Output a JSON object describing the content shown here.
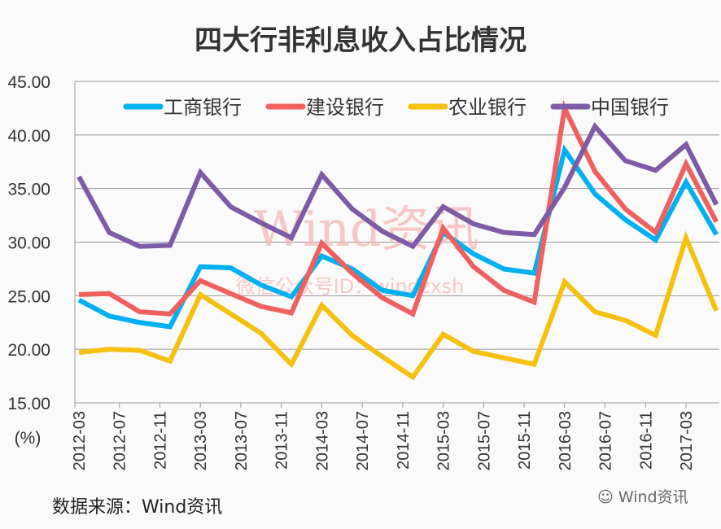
{
  "chart_data": {
    "type": "line",
    "title": "四大行非利息收入占比情况",
    "ylabel": "(%)",
    "ylim": [
      15,
      45
    ],
    "yticks": [
      "15.00",
      "20.00",
      "25.00",
      "30.00",
      "35.00",
      "40.00",
      "45.00"
    ],
    "grid": true,
    "legend_position": "top",
    "x": [
      "2012-03",
      "2012-06",
      "2012-09",
      "2012-12",
      "2013-03",
      "2013-06",
      "2013-09",
      "2013-12",
      "2014-03",
      "2014-06",
      "2014-09",
      "2014-12",
      "2015-03",
      "2015-06",
      "2015-09",
      "2015-12",
      "2016-03",
      "2016-06",
      "2016-09",
      "2016-12",
      "2017-03",
      "2017-06"
    ],
    "xtick_labels": [
      "2012-03",
      "2012-07",
      "2012-11",
      "2013-03",
      "2013-07",
      "2013-11",
      "2014-03",
      "2014-07",
      "2014-11",
      "2015-03",
      "2015-07",
      "2015-11",
      "2016-03",
      "2016-07",
      "2016-11",
      "2017-03"
    ],
    "series": [
      {
        "name": "工商银行",
        "color": "#00b0f0",
        "values": [
          24.6,
          23.1,
          22.5,
          22.1,
          27.7,
          27.6,
          26.0,
          24.9,
          28.7,
          27.5,
          25.5,
          25.0,
          30.9,
          28.9,
          27.5,
          27.1,
          38.6,
          34.5,
          32.1,
          30.2,
          35.6,
          30.7
        ]
      },
      {
        "name": "建设银行",
        "color": "#f0605e",
        "values": [
          25.1,
          25.2,
          23.5,
          23.3,
          26.4,
          25.2,
          24.0,
          23.4,
          29.9,
          27.1,
          24.8,
          23.3,
          31.3,
          27.7,
          25.5,
          24.4,
          42.5,
          36.6,
          33.1,
          30.9,
          37.3,
          31.9
        ]
      },
      {
        "name": "农业银行",
        "color": "#f6c00e",
        "values": [
          19.7,
          20.0,
          19.9,
          18.9,
          25.1,
          23.3,
          21.5,
          18.6,
          24.1,
          21.3,
          19.3,
          17.4,
          21.4,
          19.8,
          19.2,
          18.6,
          26.3,
          23.5,
          22.7,
          21.3,
          30.4,
          23.6
        ]
      },
      {
        "name": "中国银行",
        "color": "#7d5ba6",
        "values": [
          36.1,
          30.9,
          29.6,
          29.7,
          36.5,
          33.3,
          31.8,
          30.4,
          36.3,
          33.1,
          31.0,
          29.6,
          33.3,
          31.7,
          30.9,
          30.7,
          35.1,
          40.8,
          37.6,
          36.7,
          39.1,
          33.5
        ]
      }
    ]
  },
  "source": "数据来源：Wind资讯",
  "watermark": {
    "main": "Wind资讯",
    "sub": "微信公众号ID：windzxsh"
  },
  "logo_text": "Wind资讯"
}
